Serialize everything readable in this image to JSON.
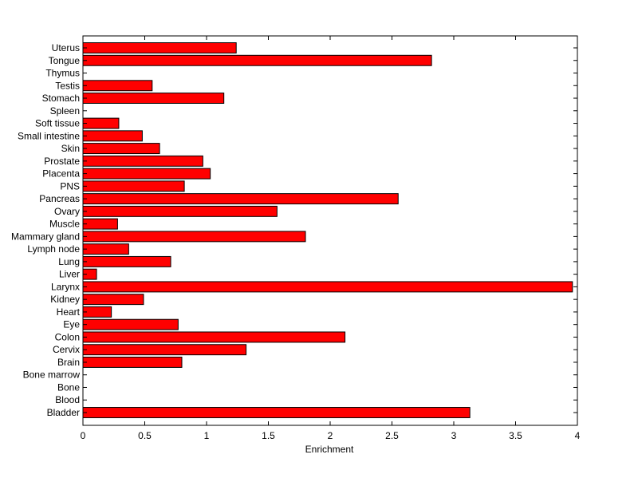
{
  "chart_data": {
    "type": "bar",
    "orientation": "horizontal",
    "title": "",
    "xlabel": "Enrichment",
    "ylabel": "",
    "xlim": [
      0,
      4
    ],
    "xticks": [
      "0",
      "0.5",
      "1",
      "1.5",
      "2",
      "2.5",
      "3",
      "3.5",
      "4"
    ],
    "grid": false,
    "bar_color": "#ff0000",
    "bar_edge_color": "#000000",
    "categories": [
      "Bladder",
      "Blood",
      "Bone",
      "Bone marrow",
      "Brain",
      "Cervix",
      "Colon",
      "Eye",
      "Heart",
      "Kidney",
      "Larynx",
      "Liver",
      "Lung",
      "Lymph node",
      "Mammary gland",
      "Muscle",
      "Ovary",
      "Pancreas",
      "PNS",
      "Placenta",
      "Prostate",
      "Skin",
      "Small intestine",
      "Soft tissue",
      "Spleen",
      "Stomach",
      "Testis",
      "Thymus",
      "Tongue",
      "Uterus"
    ],
    "values": [
      3.13,
      0,
      0,
      0,
      0.8,
      1.32,
      2.12,
      0.77,
      0.23,
      0.49,
      3.96,
      0.11,
      0.71,
      0.37,
      1.8,
      0.28,
      1.57,
      2.55,
      0.82,
      1.03,
      0.97,
      0.62,
      0.48,
      0.29,
      0,
      1.14,
      0.56,
      0,
      2.82,
      1.24
    ]
  }
}
